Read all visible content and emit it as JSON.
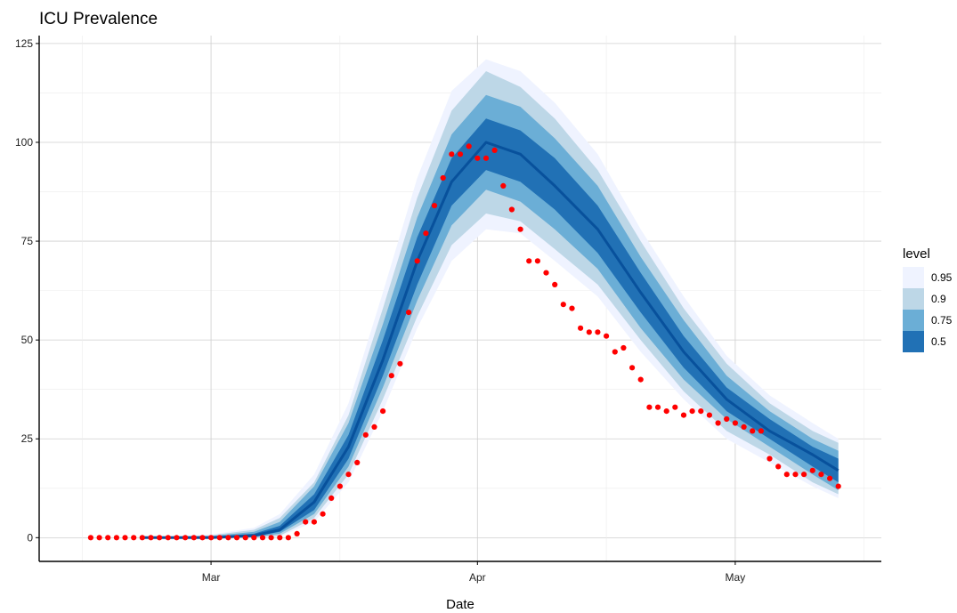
{
  "chart_data": {
    "type": "area",
    "title": "ICU Prevalence",
    "xlabel": "Date",
    "ylabel": "",
    "x_range": [
      "2020-02-10",
      "2020-05-18"
    ],
    "ylim": [
      -6,
      127
    ],
    "y_ticks": [
      0,
      25,
      50,
      75,
      100,
      125
    ],
    "x_ticks": [
      {
        "date": "2020-03-01",
        "label": "Mar"
      },
      {
        "date": "2020-04-01",
        "label": "Apr"
      },
      {
        "date": "2020-05-01",
        "label": "May"
      }
    ],
    "grid": true,
    "legend": {
      "title": "level",
      "position": "right",
      "entries": [
        {
          "label": "0.95",
          "color": "#eff3ff"
        },
        {
          "label": "0.9",
          "color": "#bdd7e7"
        },
        {
          "label": "0.75",
          "color": "#6baed6"
        },
        {
          "label": "0.5",
          "color": "#2171b5"
        }
      ]
    },
    "median_color": "#08519c",
    "point_color": "#ff0000",
    "ribbon_knots": [
      {
        "x": "2020-02-22",
        "median": 0,
        "lo50": 0,
        "hi50": 0,
        "lo75": 0,
        "hi75": 0,
        "lo90": 0,
        "hi90": 0,
        "lo95": 0,
        "hi95": 0
      },
      {
        "x": "2020-03-01",
        "median": 0,
        "lo50": 0,
        "hi50": 0.2,
        "lo75": 0,
        "hi75": 0.4,
        "lo90": 0,
        "hi90": 0.6,
        "lo95": 0,
        "hi95": 0.8
      },
      {
        "x": "2020-03-06",
        "median": 0.5,
        "lo50": 0.3,
        "hi50": 1,
        "lo75": 0.1,
        "hi75": 1.5,
        "lo90": 0,
        "hi90": 2,
        "lo95": 0,
        "hi95": 2.5
      },
      {
        "x": "2020-03-09",
        "median": 2,
        "lo50": 1.5,
        "hi50": 3,
        "lo75": 1,
        "hi75": 4,
        "lo90": 0.5,
        "hi90": 5,
        "lo95": 0.3,
        "hi95": 6
      },
      {
        "x": "2020-03-13",
        "median": 9,
        "lo50": 7,
        "hi50": 11,
        "lo75": 6,
        "hi75": 13,
        "lo90": 5,
        "hi90": 14,
        "lo95": 4,
        "hi95": 16
      },
      {
        "x": "2020-03-17",
        "median": 23,
        "lo50": 20,
        "hi50": 26,
        "lo75": 18,
        "hi75": 29,
        "lo90": 16,
        "hi90": 31,
        "lo95": 14,
        "hi95": 34
      },
      {
        "x": "2020-03-21",
        "median": 45,
        "lo50": 41,
        "hi50": 50,
        "lo75": 38,
        "hi75": 54,
        "lo90": 35,
        "hi90": 58,
        "lo95": 32,
        "hi95": 62
      },
      {
        "x": "2020-03-25",
        "median": 70,
        "lo50": 64,
        "hi50": 76,
        "lo75": 60,
        "hi75": 81,
        "lo90": 56,
        "hi90": 86,
        "lo95": 53,
        "hi95": 91
      },
      {
        "x": "2020-03-29",
        "median": 90,
        "lo50": 84,
        "hi50": 96,
        "lo75": 79,
        "hi75": 102,
        "lo90": 74,
        "hi90": 108,
        "lo95": 70,
        "hi95": 113
      },
      {
        "x": "2020-04-02",
        "median": 100,
        "lo50": 93,
        "hi50": 106,
        "lo75": 88,
        "hi75": 112,
        "lo90": 82,
        "hi90": 118,
        "lo95": 78,
        "hi95": 121
      },
      {
        "x": "2020-04-06",
        "median": 97,
        "lo50": 90,
        "hi50": 103,
        "lo75": 85,
        "hi75": 109,
        "lo90": 80,
        "hi90": 114,
        "lo95": 77,
        "hi95": 118
      },
      {
        "x": "2020-04-10",
        "median": 89,
        "lo50": 83,
        "hi50": 96,
        "lo75": 78,
        "hi75": 101,
        "lo90": 73,
        "hi90": 106,
        "lo95": 70,
        "hi95": 110
      },
      {
        "x": "2020-04-15",
        "median": 78,
        "lo50": 72,
        "hi50": 84,
        "lo75": 68,
        "hi75": 89,
        "lo90": 64,
        "hi90": 93,
        "lo95": 61,
        "hi95": 97
      },
      {
        "x": "2020-04-20",
        "median": 62,
        "lo50": 57,
        "hi50": 67,
        "lo75": 53,
        "hi75": 71,
        "lo90": 50,
        "hi90": 75,
        "lo95": 47,
        "hi95": 78
      },
      {
        "x": "2020-04-25",
        "median": 47,
        "lo50": 43,
        "hi50": 51,
        "lo75": 40,
        "hi75": 55,
        "lo90": 37,
        "hi90": 58,
        "lo95": 35,
        "hi95": 61
      },
      {
        "x": "2020-04-30",
        "median": 35,
        "lo50": 32,
        "hi50": 38,
        "lo75": 30,
        "hi75": 41,
        "lo90": 27,
        "hi90": 44,
        "lo95": 25,
        "hi95": 46
      },
      {
        "x": "2020-05-05",
        "median": 27,
        "lo50": 25,
        "hi50": 30,
        "lo75": 23,
        "hi75": 32,
        "lo90": 21,
        "hi90": 34,
        "lo95": 19,
        "hi95": 36
      },
      {
        "x": "2020-05-10",
        "median": 21,
        "lo50": 18,
        "hi50": 23,
        "lo75": 16,
        "hi75": 25,
        "lo90": 14,
        "hi90": 27,
        "lo95": 13,
        "hi95": 29
      },
      {
        "x": "2020-05-13",
        "median": 17,
        "lo50": 14,
        "hi50": 20,
        "lo75": 12,
        "hi75": 22,
        "lo90": 11,
        "hi90": 24,
        "lo95": 10,
        "hi95": 25
      }
    ],
    "observed": {
      "start": "2020-02-16",
      "values": [
        0,
        0,
        0,
        0,
        0,
        0,
        0,
        0,
        0,
        0,
        0,
        0,
        0,
        0,
        0,
        0,
        0,
        0,
        0,
        0,
        0,
        0,
        0,
        0,
        1,
        4,
        4,
        6,
        10,
        13,
        16,
        19,
        26,
        28,
        32,
        41,
        44,
        57,
        70,
        77,
        84,
        91,
        97,
        97,
        99,
        96,
        96,
        98,
        89,
        83,
        78,
        70,
        70,
        67,
        64,
        59,
        58,
        53,
        52,
        52,
        51,
        47,
        48,
        43,
        40,
        33,
        33,
        32,
        33,
        31,
        32,
        32,
        31,
        29,
        30,
        29,
        28,
        27,
        27,
        20,
        18,
        16,
        16,
        16,
        17,
        16,
        15,
        13
      ]
    }
  }
}
